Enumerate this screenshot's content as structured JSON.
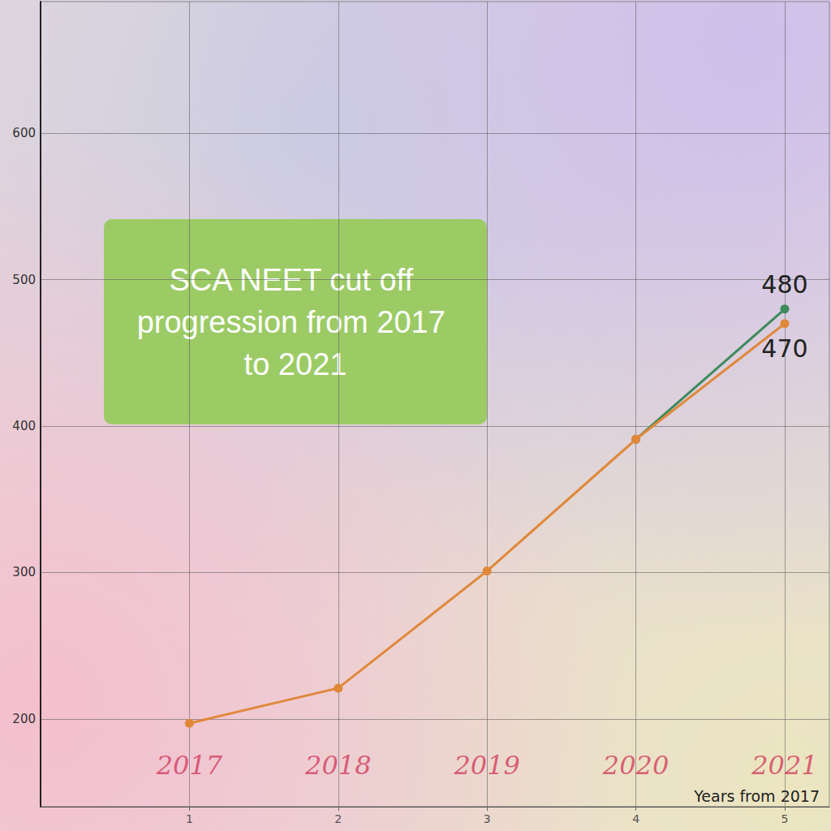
{
  "chart_data": {
    "type": "line",
    "title": "SCA NEET cut off progression from 2017 to 2021",
    "xlabel": "Years from 2017",
    "x": [
      1,
      2,
      3,
      4,
      5
    ],
    "series": [
      {
        "color": "#e0883a",
        "marker": "circle",
        "values": [
          197,
          221,
          301,
          391,
          470
        ],
        "value_labels": [
          null,
          null,
          null,
          null,
          "470"
        ]
      },
      {
        "color": "#3d8a5c",
        "marker": "circle",
        "values": [
          null,
          null,
          null,
          391,
          480
        ],
        "value_labels": [
          null,
          null,
          null,
          null,
          "480"
        ]
      }
    ],
    "annotations": [
      {
        "text": "2017",
        "x": 1,
        "y": 168
      },
      {
        "text": "2018",
        "x": 2,
        "y": 168
      },
      {
        "text": "2019",
        "x": 3,
        "y": 168
      },
      {
        "text": "2020",
        "x": 4,
        "y": 168
      },
      {
        "text": "2021",
        "x": 5,
        "y": 168
      }
    ],
    "xlim": [
      0,
      5.3
    ],
    "xticks": [
      1,
      2,
      3,
      4,
      5
    ],
    "ylim": [
      140,
      690
    ],
    "yticks": [
      200,
      300,
      400,
      500,
      600
    ],
    "grid": true,
    "data_labels": true
  }
}
